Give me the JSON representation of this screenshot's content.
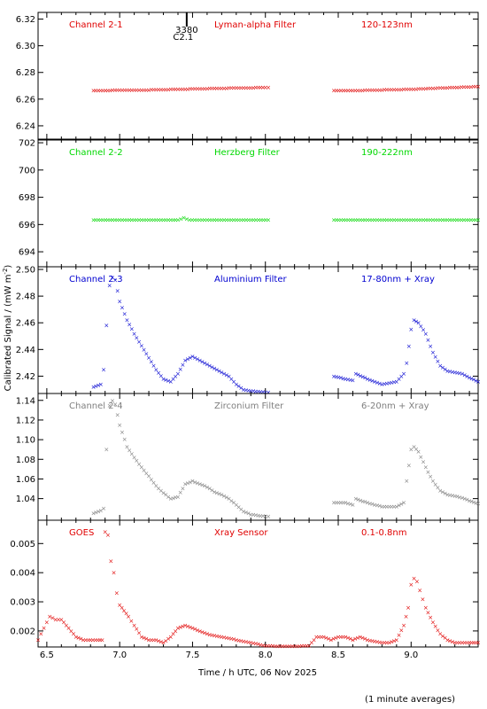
{
  "figure": {
    "xlabel": "Time / h UTC, 06 Nov 2025",
    "ylabel": "Calibrated Signal / (mW m",
    "ylabel_sup": "-2",
    "ylabel_end": ")",
    "footnote": "(1 minute averages)",
    "marker_label_a": "3380",
    "marker_label_b": "C2.1",
    "marker_time": 7.46
  },
  "chart_data": [
    {
      "type": "scatter",
      "panel": "Channel 2-1",
      "title_left": "Channel 2-1",
      "title_mid": "Lyman-alpha Filter",
      "title_right": "120-123nm",
      "color": "#e00000",
      "xlim": [
        6.44,
        9.46
      ],
      "ylim": [
        6.23,
        6.325
      ],
      "yticks": [
        6.24,
        6.26,
        6.28,
        6.3,
        6.32
      ],
      "ytick_labels": [
        "6.24",
        "6.26",
        "6.28",
        "6.30",
        "6.32"
      ],
      "xticks": [
        6.5,
        7.0,
        7.5,
        8.0,
        8.5,
        9.0
      ],
      "xtick_labels": [],
      "series": [
        {
          "segments": [
            {
              "x": [
                6.82,
                7.0,
                7.2,
                7.4,
                7.6,
                7.8,
                8.0,
                8.02
              ],
              "y": [
                6.2665,
                6.2668,
                6.267,
                6.2675,
                6.268,
                6.2685,
                6.2688,
                6.2688
              ]
            },
            {
              "x": [
                8.47,
                8.6,
                8.8,
                9.0,
                9.2,
                9.46
              ],
              "y": [
                6.2665,
                6.2665,
                6.267,
                6.2675,
                6.2685,
                6.2695
              ]
            }
          ]
        }
      ]
    },
    {
      "type": "scatter",
      "panel": "Channel 2-2",
      "title_left": "Channel 2-2",
      "title_mid": "Herzberg Filter",
      "title_right": "190-222nm",
      "color": "#00d800",
      "xlim": [
        6.44,
        9.46
      ],
      "ylim": [
        692.9,
        702.2
      ],
      "yticks": [
        694,
        696,
        698,
        700,
        702
      ],
      "ytick_labels": [
        "694",
        "696",
        "698",
        "700",
        "702"
      ],
      "xticks": [
        6.5,
        7.0,
        7.5,
        8.0,
        8.5,
        9.0
      ],
      "xtick_labels": [],
      "series": [
        {
          "segments": [
            {
              "x": [
                6.82,
                7.0,
                7.2,
                7.4,
                7.44,
                7.48,
                7.6,
                7.8,
                8.02
              ],
              "y": [
                696.35,
                696.35,
                696.35,
                696.35,
                696.5,
                696.35,
                696.35,
                696.35,
                696.35
              ]
            },
            {
              "x": [
                8.47,
                8.7,
                9.0,
                9.2,
                9.46
              ],
              "y": [
                696.35,
                696.35,
                696.35,
                696.35,
                696.35
              ]
            }
          ]
        }
      ]
    },
    {
      "type": "scatter",
      "panel": "Channel 2-3",
      "title_left": "Channel 2-3",
      "title_mid": "Aluminium Filter",
      "title_right": "17-80nm + Xray",
      "color": "#0000d0",
      "xlim": [
        6.44,
        9.46
      ],
      "ylim": [
        2.407,
        2.502
      ],
      "yticks": [
        2.42,
        2.44,
        2.46,
        2.48,
        2.5
      ],
      "ytick_labels": [
        "2.42",
        "2.44",
        "2.46",
        "2.48",
        "2.50"
      ],
      "xticks": [
        6.5,
        7.0,
        7.5,
        8.0,
        8.5,
        9.0
      ],
      "xtick_labels": [],
      "series": [
        {
          "segments": [
            {
              "x": [
                6.82,
                6.87,
                6.89,
                6.91,
                6.93,
                6.95,
                6.97,
                7.0,
                7.05,
                7.1,
                7.15,
                7.2,
                7.25,
                7.3,
                7.35,
                7.4,
                7.45,
                7.5,
                7.55,
                7.6,
                7.65,
                7.7,
                7.75,
                7.8,
                7.85,
                7.9,
                8.0,
                8.02
              ],
              "y": [
                2.412,
                2.414,
                2.425,
                2.458,
                2.488,
                2.494,
                2.492,
                2.476,
                2.462,
                2.452,
                2.443,
                2.434,
                2.425,
                2.418,
                2.416,
                2.422,
                2.432,
                2.435,
                2.432,
                2.429,
                2.426,
                2.423,
                2.42,
                2.414,
                2.41,
                2.409,
                2.408,
                2.408
              ]
            },
            {
              "x": [
                8.47,
                8.55,
                8.6,
                8.62,
                8.7,
                8.8,
                8.9,
                8.95,
                8.97,
                9.0,
                9.02,
                9.05,
                9.1,
                9.15,
                9.2,
                9.25,
                9.3,
                9.35,
                9.4,
                9.46
              ],
              "y": [
                2.42,
                2.418,
                2.417,
                2.422,
                2.418,
                2.414,
                2.416,
                2.422,
                2.43,
                2.455,
                2.462,
                2.46,
                2.452,
                2.438,
                2.428,
                2.424,
                2.423,
                2.422,
                2.419,
                2.416
              ]
            }
          ]
        }
      ]
    },
    {
      "type": "scatter",
      "panel": "Channel 2-4",
      "title_left": "Channel 2-4",
      "title_mid": "Zirconium Filter",
      "title_right": "6-20nm + Xray",
      "color": "#7f7f7f",
      "xlim": [
        6.44,
        9.46
      ],
      "ylim": [
        1.018,
        1.147
      ],
      "yticks": [
        1.04,
        1.06,
        1.08,
        1.1,
        1.12,
        1.14
      ],
      "ytick_labels": [
        "1.04",
        "1.06",
        "1.08",
        "1.10",
        "1.12",
        "1.14"
      ],
      "xticks": [
        6.5,
        7.0,
        7.5,
        8.0,
        8.5,
        9.0
      ],
      "xtick_labels": [],
      "series": [
        {
          "segments": [
            {
              "x": [
                6.82,
                6.87,
                6.89,
                6.91,
                6.93,
                6.95,
                6.97,
                7.0,
                7.05,
                7.1,
                7.15,
                7.2,
                7.25,
                7.3,
                7.35,
                7.4,
                7.45,
                7.5,
                7.55,
                7.6,
                7.65,
                7.7,
                7.75,
                7.8,
                7.85,
                7.9,
                8.0,
                8.02
              ],
              "y": [
                1.025,
                1.028,
                1.03,
                1.09,
                1.135,
                1.14,
                1.136,
                1.115,
                1.093,
                1.082,
                1.072,
                1.063,
                1.053,
                1.046,
                1.04,
                1.042,
                1.055,
                1.058,
                1.055,
                1.052,
                1.047,
                1.044,
                1.04,
                1.034,
                1.027,
                1.024,
                1.022,
                1.022
              ]
            },
            {
              "x": [
                8.47,
                8.55,
                8.6,
                8.62,
                8.7,
                8.8,
                8.9,
                8.95,
                8.97,
                9.0,
                9.02,
                9.05,
                9.1,
                9.15,
                9.2,
                9.25,
                9.3,
                9.35,
                9.4,
                9.46
              ],
              "y": [
                1.036,
                1.036,
                1.034,
                1.04,
                1.036,
                1.032,
                1.032,
                1.036,
                1.058,
                1.09,
                1.093,
                1.088,
                1.072,
                1.058,
                1.048,
                1.044,
                1.043,
                1.041,
                1.038,
                1.035
              ]
            }
          ]
        }
      ]
    },
    {
      "type": "scatter",
      "panel": "GOES",
      "title_left": "GOES",
      "title_mid": "Xray Sensor",
      "title_right": "0.1-0.8nm",
      "color": "#e00000",
      "xlim": [
        6.44,
        9.46
      ],
      "ylim": [
        0.00145,
        0.0058
      ],
      "yticks": [
        0.002,
        0.003,
        0.004,
        0.005
      ],
      "ytick_labels": [
        "0.002",
        "0.003",
        "0.004",
        "0.005"
      ],
      "xticks": [
        6.5,
        7.0,
        7.5,
        8.0,
        8.5,
        9.0
      ],
      "xtick_labels": [
        "6.5",
        "7.0",
        "7.5",
        "8.0",
        "8.5",
        "9.0"
      ],
      "series": [
        {
          "segments": [
            {
              "x": [
                6.44,
                6.48,
                6.52,
                6.56,
                6.6,
                6.65,
                6.7,
                6.75,
                6.8,
                6.85,
                6.88,
                6.9,
                6.92,
                6.94,
                6.96,
                6.98,
                7.0,
                7.03,
                7.06,
                7.1,
                7.15,
                7.2,
                7.25,
                7.3,
                7.35,
                7.4,
                7.45,
                7.5,
                7.6,
                7.7,
                7.8,
                7.9,
                8.0,
                8.1,
                8.2,
                8.3,
                8.35,
                8.4,
                8.45,
                8.5,
                8.55,
                8.6,
                8.65,
                8.7,
                8.8,
                8.85,
                8.9,
                8.95,
                8.98,
                9.0,
                9.02,
                9.04,
                9.06,
                9.1,
                9.15,
                9.2,
                9.25,
                9.3,
                9.35,
                9.4,
                9.46
              ],
              "y": [
                0.0017,
                0.0021,
                0.0025,
                0.0024,
                0.0024,
                0.0021,
                0.0018,
                0.0017,
                0.0017,
                0.0017,
                0.0017,
                0.0054,
                0.0053,
                0.0044,
                0.004,
                0.0033,
                0.0029,
                0.0027,
                0.0025,
                0.0022,
                0.0018,
                0.0017,
                0.0017,
                0.0016,
                0.0018,
                0.0021,
                0.0022,
                0.0021,
                0.0019,
                0.0018,
                0.0017,
                0.0016,
                0.0015,
                0.00148,
                0.00148,
                0.0015,
                0.0018,
                0.0018,
                0.0017,
                0.0018,
                0.0018,
                0.0017,
                0.0018,
                0.0017,
                0.0016,
                0.0016,
                0.0017,
                0.0022,
                0.0028,
                0.0036,
                0.0038,
                0.0037,
                0.0034,
                0.0028,
                0.0023,
                0.0019,
                0.0017,
                0.0016,
                0.0016,
                0.0016,
                0.0016
              ]
            }
          ]
        }
      ]
    }
  ]
}
